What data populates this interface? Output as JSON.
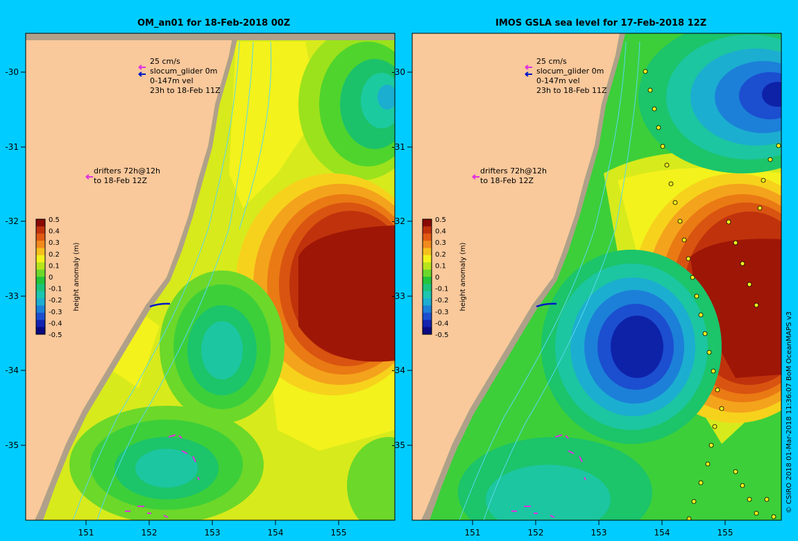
{
  "panels": [
    {
      "id": "left",
      "title": "OM_an01 for 18-Feb-2018 00Z",
      "legend": {
        "scale": "25 cm/s",
        "glider": "slocum_glider 0m",
        "vel": "0-147m vel",
        "period": "23h to 18-Feb 11Z",
        "drifters": "drifters 72h@12h",
        "drifters_to": "to 18-Feb 12Z"
      }
    },
    {
      "id": "right",
      "title": "IMOS GSLA sea level  for 17-Feb-2018 12Z",
      "legend": {
        "scale": "25 cm/s",
        "glider": "slocum_glider 0m",
        "vel": "0-147m vel",
        "period": "23h to 18-Feb 11Z",
        "drifters": "drifters 72h@12h",
        "drifters_to": "to 18-Feb 12Z"
      }
    }
  ],
  "axes": {
    "y_ticks": [
      "-30",
      "-31",
      "-32",
      "-33",
      "-34",
      "-35"
    ],
    "x_ticks": [
      "151",
      "152",
      "153",
      "154",
      "155"
    ]
  },
  "colorbar": {
    "label": "height anomaly (m)",
    "ticks": [
      "0.5",
      "0.4",
      "0.3",
      "0.2",
      "0.1",
      "0",
      "-0.1",
      "-0.2",
      "-0.3",
      "-0.4",
      "-0.5"
    ]
  },
  "credit": "© CSIRO 2018   01-Mar-2018 11:36:07 BoM OceanMAPS v3",
  "colors": {
    "land": "#f9c89b",
    "shelf": "#b0a08a",
    "background": "#00ccff"
  }
}
